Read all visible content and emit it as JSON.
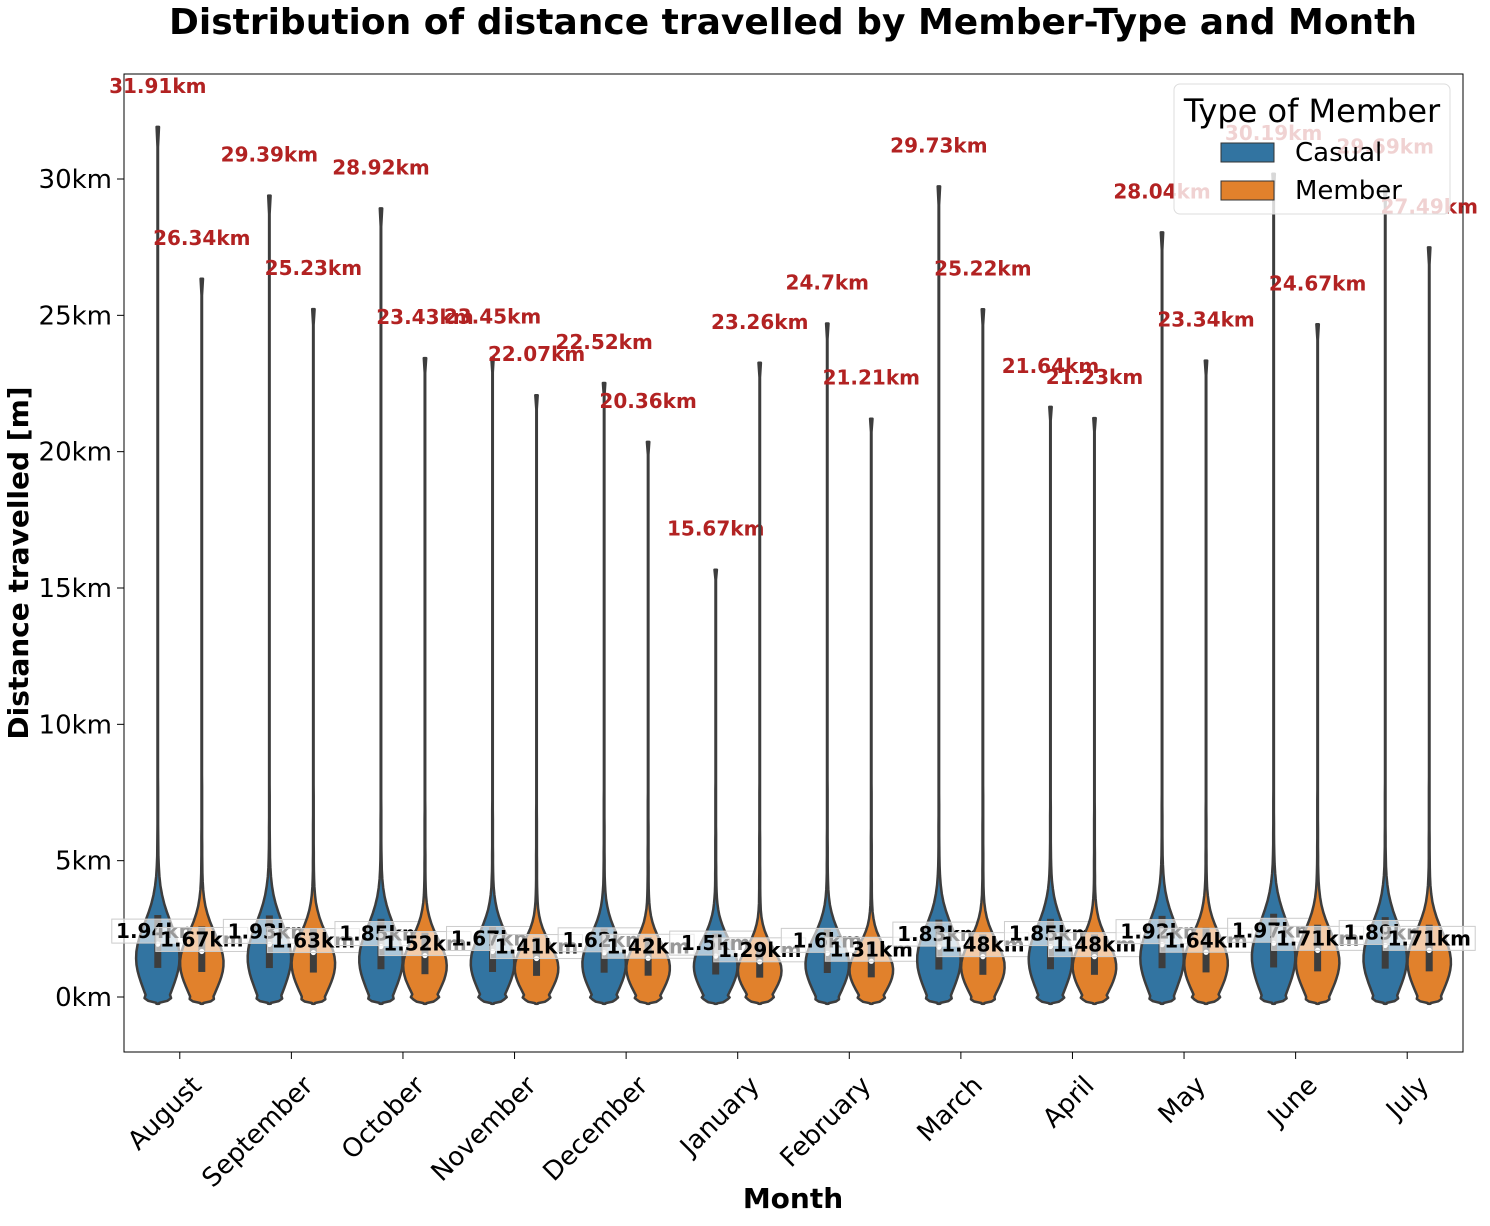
{
  "chart_data": {
    "type": "violin",
    "title": "Distribution of distance travelled by Member-Type and Month",
    "xlabel": "Month",
    "ylabel": "Distance travelled [m]",
    "ylim": [
      -2,
      34.5
    ],
    "yticks": [
      0,
      5,
      10,
      15,
      20,
      25,
      30
    ],
    "ytick_labels": [
      "0km",
      "5km",
      "10km",
      "15km",
      "20km",
      "25km",
      "30km"
    ],
    "categories": [
      "August",
      "September",
      "October",
      "November",
      "December",
      "January",
      "February",
      "March",
      "April",
      "May",
      "June",
      "July"
    ],
    "legend": {
      "title": "Type of Member",
      "position": "top-right"
    },
    "grid": false,
    "series": [
      {
        "name": "Casual",
        "color": "#3274a1",
        "max_km": [
          31.91,
          29.39,
          28.92,
          23.45,
          22.52,
          15.67,
          24.7,
          29.73,
          21.64,
          28.04,
          30.19,
          29.69
        ],
        "median_km": [
          1.94,
          1.93,
          1.85,
          1.67,
          1.62,
          1.5,
          1.6,
          1.83,
          1.85,
          1.92,
          1.97,
          1.89
        ],
        "max_labels": [
          "31.91km",
          "29.39km",
          "28.92km",
          "23.45km",
          "22.52km",
          "15.67km",
          "24.7km",
          "29.73km",
          "21.64km",
          "28.04km",
          "30.19km",
          "29.69km"
        ],
        "median_labels": [
          "1.94km",
          "1.93km",
          "1.85km",
          "1.67km",
          "1.62km",
          "1.5km",
          "1.6km",
          "1.83km",
          "1.85km",
          "1.92km",
          "1.97km",
          "1.89km"
        ]
      },
      {
        "name": "Member",
        "color": "#e1812c",
        "max_km": [
          26.34,
          25.23,
          23.43,
          22.07,
          20.36,
          23.26,
          21.21,
          25.22,
          21.23,
          23.34,
          24.67,
          27.49
        ],
        "median_km": [
          1.67,
          1.63,
          1.52,
          1.41,
          1.42,
          1.29,
          1.31,
          1.48,
          1.48,
          1.64,
          1.71,
          1.71
        ],
        "max_labels": [
          "26.34km",
          "25.23km",
          "23.43km",
          "22.07km",
          "20.36km",
          "23.26km",
          "21.21km",
          "25.22km",
          "21.23km",
          "23.34km",
          "24.67km",
          "27.49km"
        ],
        "median_labels": [
          "1.67km",
          "1.63km",
          "1.52km",
          "1.41km",
          "1.42km",
          "1.29km",
          "1.31km",
          "1.48km",
          "1.48km",
          "1.64km",
          "1.71km",
          "1.71km"
        ]
      }
    ]
  }
}
